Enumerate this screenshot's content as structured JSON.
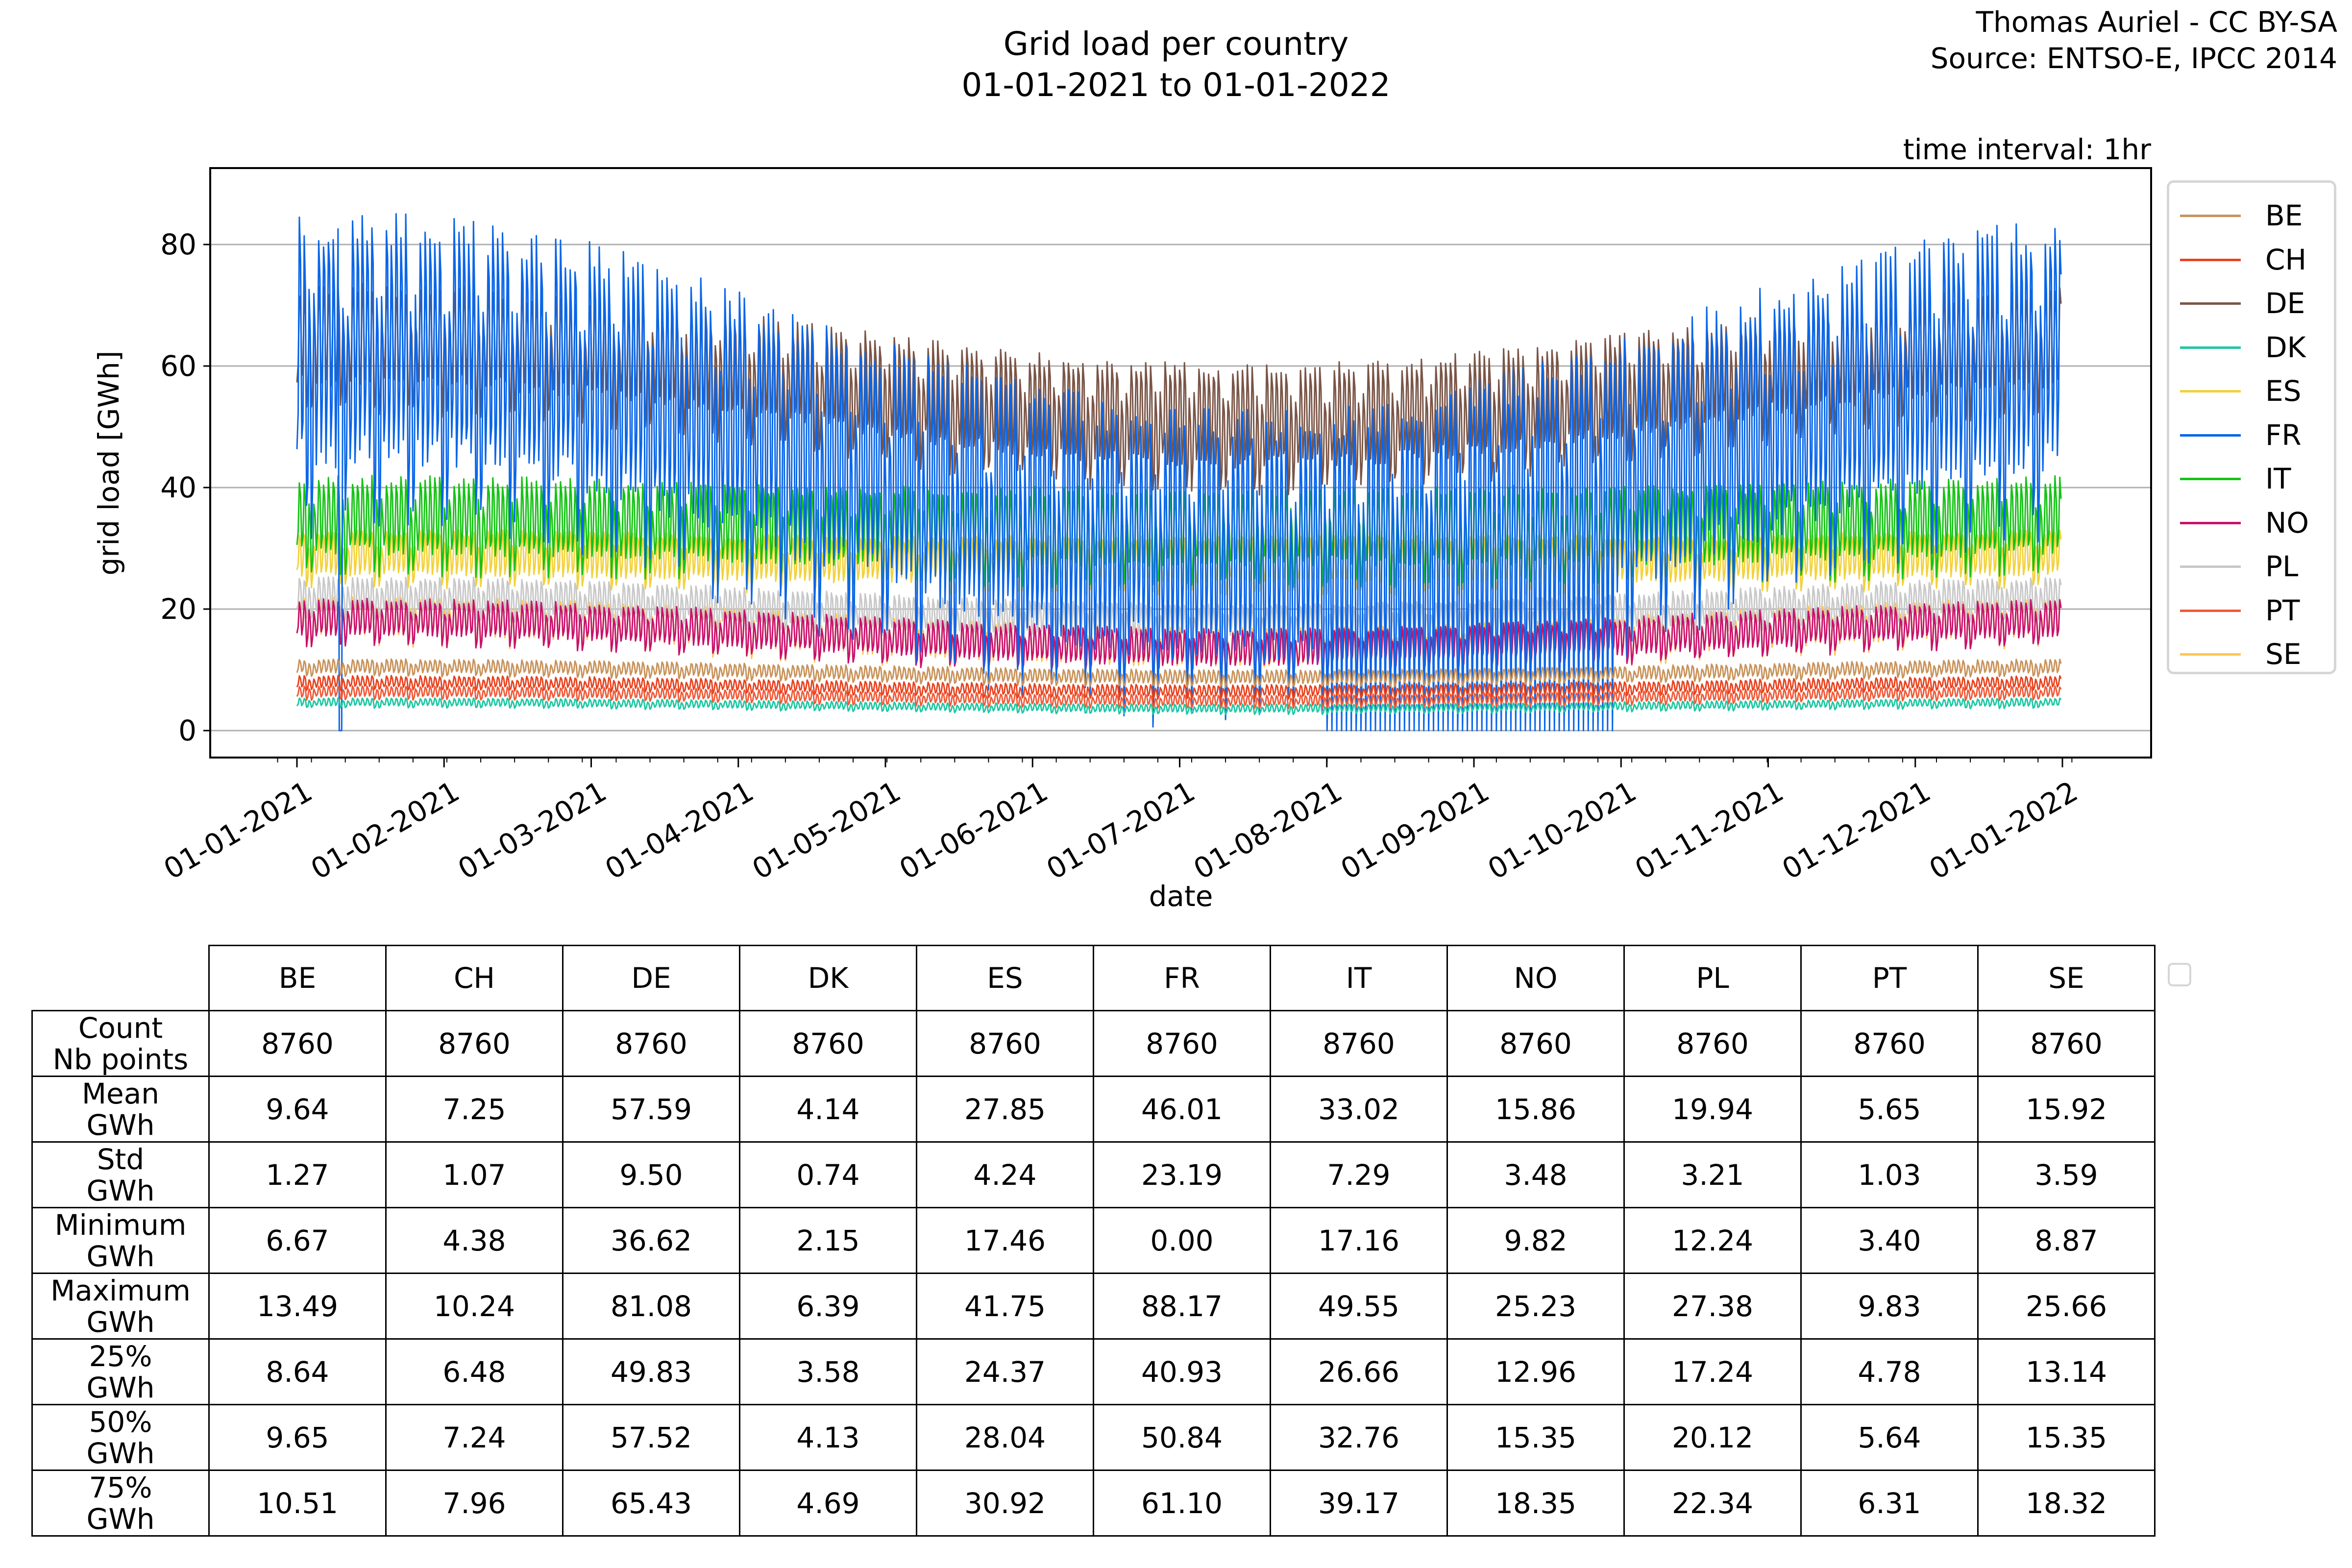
{
  "title": {
    "line1": "Grid load per country",
    "line2": "01-01-2021 to 01-01-2022"
  },
  "credits": {
    "author": "Thomas Auriel - CC BY-SA",
    "source": "Source: ENTSO-E, IPCC 2014"
  },
  "annotation": "time interval: 1hr",
  "chart_data": {
    "type": "line",
    "title": "Grid load per country",
    "subtitle": "01-01-2021 to 01-01-2022",
    "xlabel": "date",
    "ylabel": "grid load [GWh]",
    "ylim": [
      -4.5,
      92
    ],
    "yticks": [
      0,
      20,
      40,
      60,
      80
    ],
    "xlim_months": [
      -0.04,
      12.3
    ],
    "xticks": [
      "01-01-2021",
      "01-02-2021",
      "01-03-2021",
      "01-04-2021",
      "01-05-2021",
      "01-06-2021",
      "01-07-2021",
      "01-08-2021",
      "01-09-2021",
      "01-10-2021",
      "01-11-2021",
      "01-12-2021",
      "01-01-2022"
    ],
    "grid": "horizontal",
    "legend_position": "right",
    "series": [
      {
        "name": "BE",
        "color": "#c8935a",
        "mean": 9.64,
        "std": 1.27,
        "min": 6.67,
        "max": 13.49
      },
      {
        "name": "CH",
        "color": "#e8421e",
        "mean": 7.25,
        "std": 1.07,
        "min": 4.38,
        "max": 10.24
      },
      {
        "name": "DE",
        "color": "#7a5547",
        "mean": 57.59,
        "std": 9.5,
        "min": 36.62,
        "max": 81.08
      },
      {
        "name": "DK",
        "color": "#1fc7a3",
        "mean": 4.14,
        "std": 0.74,
        "min": 2.15,
        "max": 6.39
      },
      {
        "name": "ES",
        "color": "#f2d23c",
        "mean": 27.85,
        "std": 4.24,
        "min": 17.46,
        "max": 41.75
      },
      {
        "name": "FR",
        "color": "#0a66e8",
        "mean": 46.01,
        "std": 23.19,
        "min": 0.0,
        "max": 88.17
      },
      {
        "name": "IT",
        "color": "#16c316",
        "mean": 33.02,
        "std": 7.29,
        "min": 17.16,
        "max": 49.55
      },
      {
        "name": "NO",
        "color": "#c8116d",
        "mean": 15.86,
        "std": 3.48,
        "min": 9.82,
        "max": 25.23
      },
      {
        "name": "PL",
        "color": "#c8c8c8",
        "mean": 19.94,
        "std": 3.21,
        "min": 12.24,
        "max": 27.38
      },
      {
        "name": "PT",
        "color": "#f05a38",
        "mean": 5.65,
        "std": 1.03,
        "min": 3.4,
        "max": 9.83
      },
      {
        "name": "SE",
        "color": "#ffc556",
        "mean": 15.92,
        "std": 3.59,
        "min": 8.87,
        "max": 25.66
      }
    ]
  },
  "table": {
    "columns": [
      "BE",
      "CH",
      "DE",
      "DK",
      "ES",
      "FR",
      "IT",
      "NO",
      "PL",
      "PT",
      "SE"
    ],
    "rows": [
      {
        "label1": "Count",
        "label2": "Nb points",
        "values": [
          "8760",
          "8760",
          "8760",
          "8760",
          "8760",
          "8760",
          "8760",
          "8760",
          "8760",
          "8760",
          "8760"
        ]
      },
      {
        "label1": "Mean",
        "label2": "GWh",
        "values": [
          "9.64",
          "7.25",
          "57.59",
          "4.14",
          "27.85",
          "46.01",
          "33.02",
          "15.86",
          "19.94",
          "5.65",
          "15.92"
        ]
      },
      {
        "label1": "Std",
        "label2": "GWh",
        "values": [
          "1.27",
          "1.07",
          "9.50",
          "0.74",
          "4.24",
          "23.19",
          "7.29",
          "3.48",
          "3.21",
          "1.03",
          "3.59"
        ]
      },
      {
        "label1": "Minimum",
        "label2": "GWh",
        "values": [
          "6.67",
          "4.38",
          "36.62",
          "2.15",
          "17.46",
          "0.00",
          "17.16",
          "9.82",
          "12.24",
          "3.40",
          "8.87"
        ]
      },
      {
        "label1": "Maximum",
        "label2": "GWh",
        "values": [
          "13.49",
          "10.24",
          "81.08",
          "6.39",
          "41.75",
          "88.17",
          "49.55",
          "25.23",
          "27.38",
          "9.83",
          "25.66"
        ]
      },
      {
        "label1": "25%",
        "label2": "GWh",
        "values": [
          "8.64",
          "6.48",
          "49.83",
          "3.58",
          "24.37",
          "40.93",
          "26.66",
          "12.96",
          "17.24",
          "4.78",
          "13.14"
        ]
      },
      {
        "label1": "50%",
        "label2": "GWh",
        "values": [
          "9.65",
          "7.24",
          "57.52",
          "4.13",
          "28.04",
          "50.84",
          "32.76",
          "15.35",
          "20.12",
          "5.64",
          "15.35"
        ]
      },
      {
        "label1": "75%",
        "label2": "GWh",
        "values": [
          "10.51",
          "7.96",
          "65.43",
          "4.69",
          "30.92",
          "61.10",
          "39.17",
          "18.35",
          "22.34",
          "6.31",
          "18.32"
        ]
      }
    ]
  }
}
